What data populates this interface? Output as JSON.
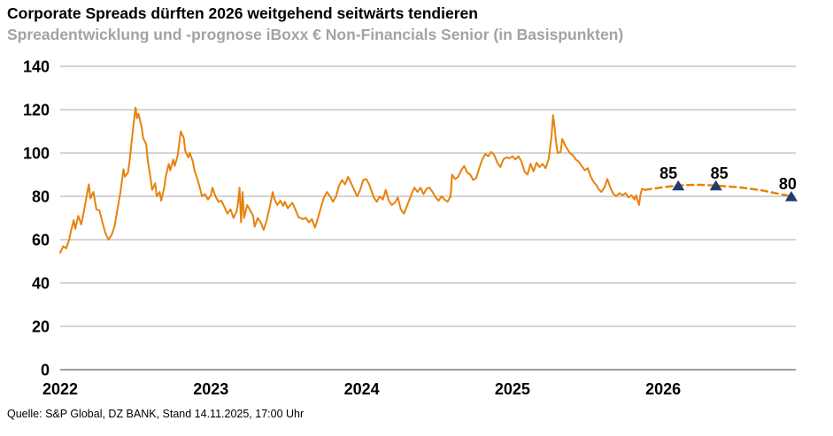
{
  "header": {
    "title": "Corporate Spreads dürften 2026 weitgehend seitwärts tendieren",
    "subtitle": "Spreadentwicklung und -prognose iBoxx € Non-Financials Senior (in Basispunkten)"
  },
  "footer": {
    "source": "Quelle: S&P Global, DZ BANK, Stand 14.11.2025, 17:00 Uhr"
  },
  "chart_data": {
    "type": "line",
    "title": "Corporate Spreads dürften 2026 weitgehend seitwärts tendieren",
    "subtitle": "Spreadentwicklung und -prognose iBoxx € Non-Financials Senior (in Basispunkten)",
    "xlabel": "",
    "ylabel": "",
    "unit": "Basispunkte",
    "ylim": [
      0,
      140
    ],
    "yticks": [
      0,
      20,
      40,
      60,
      80,
      100,
      120,
      140
    ],
    "xlim": [
      2022.0,
      2026.88
    ],
    "xticks": [
      2022,
      2023,
      2024,
      2025,
      2026
    ],
    "grid": true,
    "legend": "none",
    "colors": {
      "line": "#e8820c",
      "forecast_line": "#e8820c",
      "marker": "#1e3c6e",
      "grid": "#a9a9a9",
      "axis": "#7f7f7f",
      "tick_label": "#000000",
      "subtitle": "#a3a3a3"
    },
    "series": [
      {
        "name": "Spreadentwicklung iBoxx € Non-Financials Senior",
        "style": "solid",
        "points": [
          [
            2022.0,
            54
          ],
          [
            2022.02,
            57
          ],
          [
            2022.04,
            56
          ],
          [
            2022.06,
            60
          ],
          [
            2022.07,
            63.5
          ],
          [
            2022.09,
            69
          ],
          [
            2022.1,
            65
          ],
          [
            2022.12,
            71
          ],
          [
            2022.14,
            67
          ],
          [
            2022.16,
            74
          ],
          [
            2022.18,
            82
          ],
          [
            2022.19,
            85.5
          ],
          [
            2022.2,
            79
          ],
          [
            2022.22,
            82
          ],
          [
            2022.24,
            74
          ],
          [
            2022.26,
            73.5
          ],
          [
            2022.28,
            68
          ],
          [
            2022.3,
            63
          ],
          [
            2022.32,
            60
          ],
          [
            2022.34,
            62
          ],
          [
            2022.36,
            66
          ],
          [
            2022.38,
            74
          ],
          [
            2022.4,
            82
          ],
          [
            2022.42,
            92.5
          ],
          [
            2022.43,
            89
          ],
          [
            2022.45,
            91
          ],
          [
            2022.46,
            96
          ],
          [
            2022.48,
            109
          ],
          [
            2022.5,
            121
          ],
          [
            2022.51,
            116
          ],
          [
            2022.52,
            118
          ],
          [
            2022.54,
            112
          ],
          [
            2022.55,
            107
          ],
          [
            2022.57,
            104
          ],
          [
            2022.58,
            97
          ],
          [
            2022.6,
            88
          ],
          [
            2022.61,
            83
          ],
          [
            2022.63,
            86
          ],
          [
            2022.64,
            80
          ],
          [
            2022.66,
            82
          ],
          [
            2022.67,
            78
          ],
          [
            2022.69,
            84
          ],
          [
            2022.7,
            89
          ],
          [
            2022.72,
            95
          ],
          [
            2022.73,
            92
          ],
          [
            2022.75,
            97
          ],
          [
            2022.76,
            94
          ],
          [
            2022.78,
            99
          ],
          [
            2022.8,
            110
          ],
          [
            2022.82,
            107
          ],
          [
            2022.83,
            101
          ],
          [
            2022.85,
            98
          ],
          [
            2022.86,
            100
          ],
          [
            2022.88,
            96
          ],
          [
            2022.89,
            92
          ],
          [
            2022.91,
            88
          ],
          [
            2022.93,
            83
          ],
          [
            2022.94,
            80
          ],
          [
            2022.96,
            81
          ],
          [
            2022.98,
            78.5
          ],
          [
            2023.0,
            80.5
          ],
          [
            2023.01,
            84
          ],
          [
            2023.03,
            80
          ],
          [
            2023.05,
            77.5
          ],
          [
            2023.07,
            78
          ],
          [
            2023.09,
            75
          ],
          [
            2023.11,
            72
          ],
          [
            2023.13,
            74
          ],
          [
            2023.15,
            70
          ],
          [
            2023.17,
            73
          ],
          [
            2023.18,
            77
          ],
          [
            2023.19,
            84
          ],
          [
            2023.2,
            68
          ],
          [
            2023.21,
            82
          ],
          [
            2023.22,
            70
          ],
          [
            2023.24,
            76
          ],
          [
            2023.26,
            73.5
          ],
          [
            2023.28,
            71
          ],
          [
            2023.29,
            66
          ],
          [
            2023.31,
            70
          ],
          [
            2023.33,
            68
          ],
          [
            2023.35,
            64.5
          ],
          [
            2023.37,
            69
          ],
          [
            2023.39,
            75
          ],
          [
            2023.41,
            82
          ],
          [
            2023.42,
            79
          ],
          [
            2023.44,
            76
          ],
          [
            2023.46,
            78
          ],
          [
            2023.48,
            75.5
          ],
          [
            2023.49,
            77.5
          ],
          [
            2023.51,
            74.5
          ],
          [
            2023.54,
            77
          ],
          [
            2023.56,
            74
          ],
          [
            2023.58,
            70.5
          ],
          [
            2023.61,
            69.5
          ],
          [
            2023.63,
            70
          ],
          [
            2023.65,
            68
          ],
          [
            2023.67,
            69.5
          ],
          [
            2023.69,
            65.5
          ],
          [
            2023.71,
            70
          ],
          [
            2023.73,
            75
          ],
          [
            2023.75,
            79.5
          ],
          [
            2023.77,
            82
          ],
          [
            2023.79,
            80
          ],
          [
            2023.81,
            77.5
          ],
          [
            2023.83,
            80
          ],
          [
            2023.85,
            85
          ],
          [
            2023.87,
            87.5
          ],
          [
            2023.89,
            85.5
          ],
          [
            2023.91,
            89
          ],
          [
            2023.93,
            86
          ],
          [
            2023.95,
            83
          ],
          [
            2023.97,
            80
          ],
          [
            2023.99,
            83
          ],
          [
            2024.01,
            87.5
          ],
          [
            2024.03,
            88
          ],
          [
            2024.05,
            85.5
          ],
          [
            2024.08,
            79.5
          ],
          [
            2024.1,
            77.5
          ],
          [
            2024.12,
            80
          ],
          [
            2024.14,
            78.5
          ],
          [
            2024.16,
            83
          ],
          [
            2024.18,
            78
          ],
          [
            2024.2,
            76
          ],
          [
            2024.22,
            77
          ],
          [
            2024.24,
            79.5
          ],
          [
            2024.26,
            74
          ],
          [
            2024.28,
            72
          ],
          [
            2024.3,
            75.5
          ],
          [
            2024.33,
            81
          ],
          [
            2024.35,
            84
          ],
          [
            2024.37,
            82
          ],
          [
            2024.39,
            84
          ],
          [
            2024.41,
            81
          ],
          [
            2024.43,
            83.5
          ],
          [
            2024.45,
            84
          ],
          [
            2024.47,
            82
          ],
          [
            2024.49,
            79.5
          ],
          [
            2024.51,
            78
          ],
          [
            2024.53,
            80
          ],
          [
            2024.55,
            78.5
          ],
          [
            2024.57,
            77.5
          ],
          [
            2024.59,
            80
          ],
          [
            2024.6,
            90
          ],
          [
            2024.62,
            88
          ],
          [
            2024.64,
            89
          ],
          [
            2024.66,
            92
          ],
          [
            2024.68,
            94
          ],
          [
            2024.7,
            91
          ],
          [
            2024.72,
            90
          ],
          [
            2024.74,
            87.5
          ],
          [
            2024.76,
            88.5
          ],
          [
            2024.78,
            93
          ],
          [
            2024.8,
            97
          ],
          [
            2024.82,
            99.5
          ],
          [
            2024.84,
            98.5
          ],
          [
            2024.86,
            100.5
          ],
          [
            2024.88,
            99
          ],
          [
            2024.9,
            95.5
          ],
          [
            2024.92,
            93.5
          ],
          [
            2024.94,
            97
          ],
          [
            2024.96,
            98
          ],
          [
            2024.98,
            97.5
          ],
          [
            2025.0,
            98.5
          ],
          [
            2025.02,
            97
          ],
          [
            2025.04,
            98.5
          ],
          [
            2025.06,
            96
          ],
          [
            2025.08,
            91.5
          ],
          [
            2025.1,
            90
          ],
          [
            2025.12,
            95
          ],
          [
            2025.14,
            91.5
          ],
          [
            2025.16,
            95.5
          ],
          [
            2025.18,
            93.5
          ],
          [
            2025.2,
            95
          ],
          [
            2025.22,
            93
          ],
          [
            2025.24,
            97
          ],
          [
            2025.26,
            108
          ],
          [
            2025.27,
            117.5
          ],
          [
            2025.28,
            112
          ],
          [
            2025.29,
            105
          ],
          [
            2025.3,
            100
          ],
          [
            2025.32,
            100.5
          ],
          [
            2025.33,
            106.5
          ],
          [
            2025.35,
            103.5
          ],
          [
            2025.38,
            100
          ],
          [
            2025.4,
            99
          ],
          [
            2025.42,
            97
          ],
          [
            2025.44,
            96
          ],
          [
            2025.46,
            94
          ],
          [
            2025.48,
            92
          ],
          [
            2025.5,
            93
          ],
          [
            2025.52,
            89
          ],
          [
            2025.54,
            86.5
          ],
          [
            2025.56,
            85
          ],
          [
            2025.57,
            83.5
          ],
          [
            2025.59,
            82
          ],
          [
            2025.61,
            84
          ],
          [
            2025.63,
            88
          ],
          [
            2025.65,
            84
          ],
          [
            2025.67,
            81
          ],
          [
            2025.69,
            80
          ],
          [
            2025.71,
            81.5
          ],
          [
            2025.73,
            80.5
          ],
          [
            2025.75,
            81.5
          ],
          [
            2025.77,
            79.5
          ],
          [
            2025.79,
            80.5
          ],
          [
            2025.81,
            78.5
          ],
          [
            2025.82,
            80.5
          ],
          [
            2025.84,
            76
          ],
          [
            2025.85,
            81
          ],
          [
            2025.86,
            83.5
          ],
          [
            2025.88,
            83
          ]
        ]
      },
      {
        "name": "Prognose",
        "style": "dashed",
        "points": [
          [
            2025.88,
            83
          ],
          [
            2026.0,
            84.2
          ],
          [
            2026.1,
            85
          ],
          [
            2026.22,
            85.4
          ],
          [
            2026.35,
            85
          ],
          [
            2026.5,
            84.2
          ],
          [
            2026.65,
            82.8
          ],
          [
            2026.85,
            80
          ]
        ],
        "markers": [
          {
            "x": 2026.1,
            "y": 85,
            "label": "85",
            "label_dx": -11
          },
          {
            "x": 2026.35,
            "y": 85,
            "label": "85",
            "label_dx": 4
          },
          {
            "x": 2026.85,
            "y": 80,
            "label": "80",
            "label_dx": -4
          }
        ]
      }
    ]
  }
}
